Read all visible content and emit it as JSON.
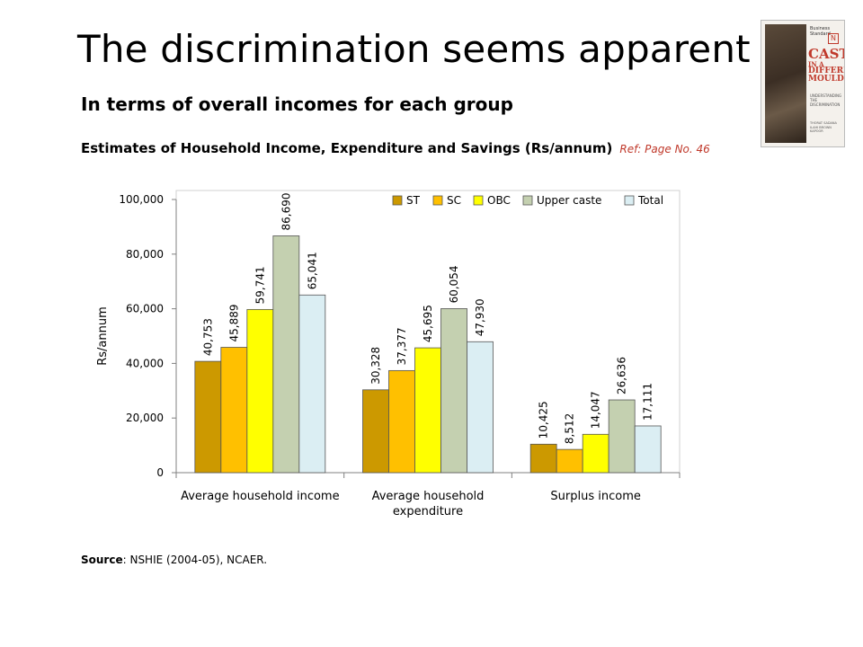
{
  "slide": {
    "title": "The discrimination seems apparent …",
    "subtitle": "In terms of overall incomes for each group",
    "estimate": "Estimates of Household Income, Expenditure and Savings (Rs/annum)",
    "ref": "Ref: Page No. 46",
    "source_label": "Source",
    "source_text": ": NSHIE (2004-05), NCAER."
  },
  "book": {
    "publisher": "Business Standard",
    "logo": "N",
    "title_lines": [
      "CASTE",
      "IN A",
      "DIFFERENT",
      "MOULD"
    ],
    "subtitle": "UNDERSTANDING THE DISCRIMINATION",
    "authors": "THORAT SADANA ILAHI BROWN KAPOOR",
    "colors": {
      "title": "#c0392b",
      "background": "#f4f1ec"
    }
  },
  "chart_data": {
    "type": "bar",
    "title": "",
    "xlabel": "",
    "ylabel": "Rs/annum",
    "ylim": [
      0,
      100000
    ],
    "yticks": [
      0,
      20000,
      40000,
      60000,
      80000,
      100000
    ],
    "ytick_labels": [
      "0",
      "20,000",
      "40,000",
      "60,000",
      "80,000",
      "100,000"
    ],
    "grid": false,
    "legend_position": "top",
    "categories": [
      "Average household income",
      "Average household expenditure",
      "Surplus income"
    ],
    "series": [
      {
        "name": "ST",
        "color": "#cc9900",
        "values": [
          40753,
          30328,
          10425
        ],
        "labels": [
          "40,753",
          "30,328",
          "10,425"
        ]
      },
      {
        "name": "SC",
        "color": "#ffc000",
        "values": [
          45889,
          37377,
          8512
        ],
        "labels": [
          "45,889",
          "37,377",
          "8,512"
        ]
      },
      {
        "name": "OBC",
        "color": "#ffff00",
        "values": [
          59741,
          45695,
          14047
        ],
        "labels": [
          "59,741",
          "45,695",
          "14,047"
        ]
      },
      {
        "name": "Upper caste",
        "color": "#c4d0b0",
        "values": [
          86690,
          60054,
          26636
        ],
        "labels": [
          "86,690",
          "60,054",
          "26,636"
        ]
      },
      {
        "name": "Total",
        "color": "#dbeef3",
        "values": [
          65041,
          47930,
          17111
        ],
        "labels": [
          "65,041",
          "47,930",
          "17,111"
        ]
      }
    ]
  }
}
